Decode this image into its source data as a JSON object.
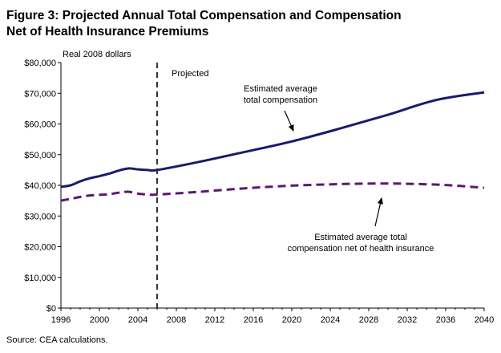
{
  "chart_data": {
    "type": "line",
    "title_line1": "Figure 3: Projected Annual Total Compensation and Compensation",
    "title_line2": "Net of Health Insurance Premiums",
    "ylabel": "Real 2008 dollars",
    "xlabel": "",
    "source": "Source: CEA calculations.",
    "projected_label": "Projected",
    "projected_start": 2006,
    "xlim": [
      1996,
      2040
    ],
    "ylim": [
      0,
      80000
    ],
    "x_ticks": [
      1996,
      2000,
      2004,
      2008,
      2012,
      2016,
      2020,
      2024,
      2028,
      2032,
      2036,
      2040
    ],
    "y_ticks": [
      {
        "value": 0,
        "label": "$0"
      },
      {
        "value": 10000,
        "label": "$10,000"
      },
      {
        "value": 20000,
        "label": "$20,000"
      },
      {
        "value": 30000,
        "label": "$30,000"
      },
      {
        "value": 40000,
        "label": "$40,000"
      },
      {
        "value": 50000,
        "label": "$50,000"
      },
      {
        "value": 60000,
        "label": "$60,000"
      },
      {
        "value": 70000,
        "label": "$70,000"
      },
      {
        "value": 80000,
        "label": "$80,000"
      }
    ],
    "grid": false,
    "series": [
      {
        "name": "Estimated average total compensation",
        "annotation": [
          "Estimated average",
          "total compensation"
        ],
        "color": "#1a1a6e",
        "style": "solid",
        "x": [
          1996,
          1997,
          1998,
          1999,
          2000,
          2001,
          2002,
          2003,
          2004,
          2005,
          2006,
          2010,
          2015,
          2020,
          2025,
          2030,
          2035,
          2040
        ],
        "y": [
          39500,
          40000,
          41300,
          42300,
          43000,
          43800,
          44800,
          45500,
          45200,
          45000,
          45000,
          47400,
          50800,
          54300,
          58500,
          63000,
          67800,
          70300
        ]
      },
      {
        "name": "Estimated average total compensation net of health insurance",
        "annotation": [
          "Estimated average total",
          "compensation net of health insurance"
        ],
        "color": "#5a1a6e",
        "style": "dashed",
        "x": [
          1996,
          1997,
          1998,
          1999,
          2000,
          2001,
          2002,
          2003,
          2004,
          2005,
          2006,
          2010,
          2015,
          2020,
          2025,
          2029,
          2032,
          2036,
          2040
        ],
        "y": [
          35000,
          35600,
          36200,
          36700,
          36900,
          37100,
          37600,
          37900,
          37300,
          37000,
          37000,
          37800,
          39000,
          39900,
          40400,
          40600,
          40500,
          40100,
          39200
        ]
      }
    ]
  }
}
